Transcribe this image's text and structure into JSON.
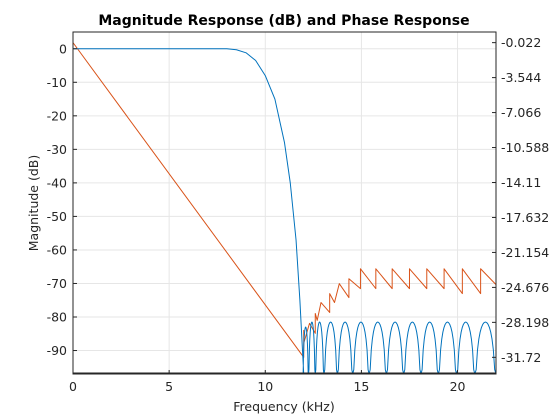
{
  "chart_data": {
    "type": "line",
    "title": "Magnitude Response (dB) and Phase Response",
    "xlabel": "Frequency (kHz)",
    "ylabel": "Magnitude (dB)",
    "y2label": "",
    "xlim": [
      0,
      22
    ],
    "ylim": [
      -97,
      5
    ],
    "y2lim": [
      -33.4,
      1.05
    ],
    "grid": true,
    "x_ticks": [
      0,
      5,
      10,
      15,
      20
    ],
    "x_tick_labels": [
      "0",
      "5",
      "10",
      "15",
      "20"
    ],
    "y_ticks": [
      0,
      -10,
      -20,
      -30,
      -40,
      -50,
      -60,
      -70,
      -80,
      -90
    ],
    "y_tick_labels": [
      "0",
      "-10",
      "-20",
      "-30",
      "-40",
      "-50",
      "-60",
      "-70",
      "-80",
      "-90"
    ],
    "y2_ticks": [
      -0.022,
      -3.544,
      -7.066,
      -10.588,
      -14.11,
      -17.632,
      -21.154,
      -24.676,
      -28.198,
      -31.72
    ],
    "y2_tick_labels": [
      "-0.022",
      "-3.544",
      "-7.066",
      "-10.588",
      "-14.11",
      "-17.632",
      "-21.154",
      "-24.676",
      "-28.198",
      "-31.72"
    ],
    "colors": {
      "magnitude": "#0072BD",
      "phase": "#D95319",
      "grid": "#e6e6e6",
      "axes": "#262626"
    },
    "series": [
      {
        "axis": "left",
        "color": "#0072BD",
        "passband": {
          "x": [
            0,
            8.0
          ],
          "y": 0
        },
        "transition": {
          "x": [
            8.0,
            8.5,
            9.0,
            9.5,
            10.0,
            10.5,
            11.0,
            11.3,
            11.6,
            11.8,
            12.0
          ],
          "y": [
            0,
            -0.3,
            -1.2,
            -3.5,
            -8,
            -15,
            -28,
            -40,
            -57,
            -75,
            -97
          ]
        },
        "stopband_lobe_edges": [
          11.95,
          12.25,
          12.6,
          13.05,
          13.75,
          14.55,
          15.4,
          16.3,
          17.2,
          18.1,
          19.0,
          19.95,
          20.9,
          22.0
        ],
        "stopband_lobe_peaks": [
          -83,
          -81.5,
          -81.5,
          -81.5,
          -81.5,
          -81.5,
          -81.5,
          -81.5,
          -81.5,
          -81.5,
          -81.5,
          -81.5,
          -81.5
        ]
      },
      {
        "axis": "right",
        "color": "#D95319",
        "x": [
          0,
          12.0,
          12.0,
          12.0,
          12.3,
          12.6,
          12.6,
          12.7,
          12.9,
          13.35,
          13.35,
          13.6,
          13.85,
          14.35,
          14.35,
          14.95,
          14.95,
          15.75,
          15.75,
          16.6,
          16.6,
          17.5,
          17.5,
          18.4,
          18.4,
          19.3,
          19.3,
          20.25,
          20.25,
          21.2,
          21.2,
          22.0
        ],
        "y": [
          -0.022,
          -31.72,
          -29.0,
          -30.3,
          -28.3,
          -29.3,
          -27.3,
          -28.0,
          -26.2,
          -27.2,
          -25.3,
          -26.2,
          -24.3,
          -25.7,
          -23.8,
          -24.8,
          -22.8,
          -24.8,
          -22.8,
          -24.8,
          -22.8,
          -24.8,
          -22.8,
          -24.8,
          -22.8,
          -24.8,
          -22.8,
          -25.3,
          -22.8,
          -25.3,
          -22.8,
          -24.4
        ]
      }
    ]
  }
}
